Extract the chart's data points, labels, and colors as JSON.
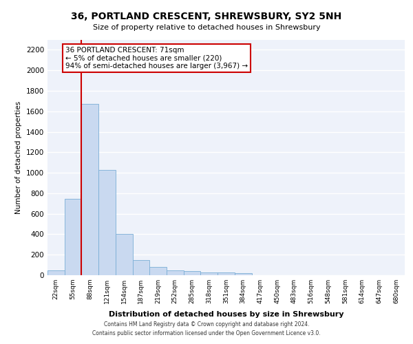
{
  "title": "36, PORTLAND CRESCENT, SHREWSBURY, SY2 5NH",
  "subtitle": "Size of property relative to detached houses in Shrewsbury",
  "xlabel": "Distribution of detached houses by size in Shrewsbury",
  "ylabel": "Number of detached properties",
  "bar_color": "#c9d9f0",
  "bar_edge_color": "#7aaed6",
  "background_color": "#eef2fa",
  "grid_color": "#ffffff",
  "categories": [
    "22sqm",
    "55sqm",
    "88sqm",
    "121sqm",
    "154sqm",
    "187sqm",
    "219sqm",
    "252sqm",
    "285sqm",
    "318sqm",
    "351sqm",
    "384sqm",
    "417sqm",
    "450sqm",
    "483sqm",
    "516sqm",
    "548sqm",
    "581sqm",
    "614sqm",
    "647sqm",
    "680sqm"
  ],
  "values": [
    50,
    745,
    1670,
    1030,
    405,
    150,
    80,
    45,
    40,
    28,
    25,
    18,
    0,
    0,
    0,
    0,
    0,
    0,
    0,
    0,
    0
  ],
  "ylim": [
    0,
    2300
  ],
  "yticks": [
    0,
    200,
    400,
    600,
    800,
    1000,
    1200,
    1400,
    1600,
    1800,
    2000,
    2200
  ],
  "property_line_x": 1.5,
  "annotation_text": "36 PORTLAND CRESCENT: 71sqm\n← 5% of detached houses are smaller (220)\n94% of semi-detached houses are larger (3,967) →",
  "annotation_box_color": "#ffffff",
  "annotation_box_edge": "#cc0000",
  "property_line_color": "#cc0000",
  "footer1": "Contains HM Land Registry data © Crown copyright and database right 2024.",
  "footer2": "Contains public sector information licensed under the Open Government Licence v3.0."
}
